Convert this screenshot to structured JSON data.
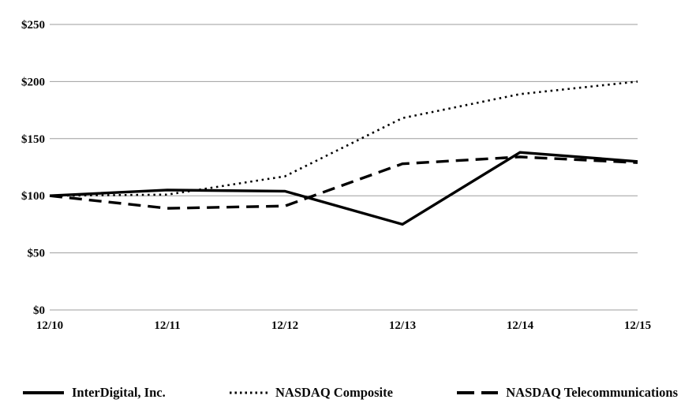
{
  "chart_data": {
    "type": "line",
    "title": "",
    "xlabel": "",
    "ylabel": "",
    "categories": [
      "12/10",
      "12/11",
      "12/12",
      "12/13",
      "12/14",
      "12/15"
    ],
    "series": [
      {
        "name": "InterDigital, Inc.",
        "line_style": "solid",
        "values": [
          100,
          105,
          104,
          75,
          138,
          130
        ]
      },
      {
        "name": "NASDAQ Composite",
        "line_style": "dotted",
        "values": [
          100,
          101,
          117,
          168,
          189,
          200
        ]
      },
      {
        "name": "NASDAQ Telecommunications",
        "line_style": "dashed",
        "values": [
          100,
          89,
          91,
          128,
          134,
          129
        ]
      }
    ],
    "y_axis_ticks": [
      {
        "label": "$0",
        "value": 0
      },
      {
        "label": "$50",
        "value": 50
      },
      {
        "label": "$100",
        "value": 100
      },
      {
        "label": "$150",
        "value": 150
      },
      {
        "label": "$200",
        "value": 200
      },
      {
        "label": "$250",
        "value": 250
      }
    ],
    "ylim": [
      0,
      250
    ],
    "grid": "horizontal",
    "legend_position": "bottom",
    "colors": {
      "line": "#000000",
      "grid": "#9e9e9e",
      "text": "#0a0a0a",
      "background": "#ffffff"
    }
  }
}
